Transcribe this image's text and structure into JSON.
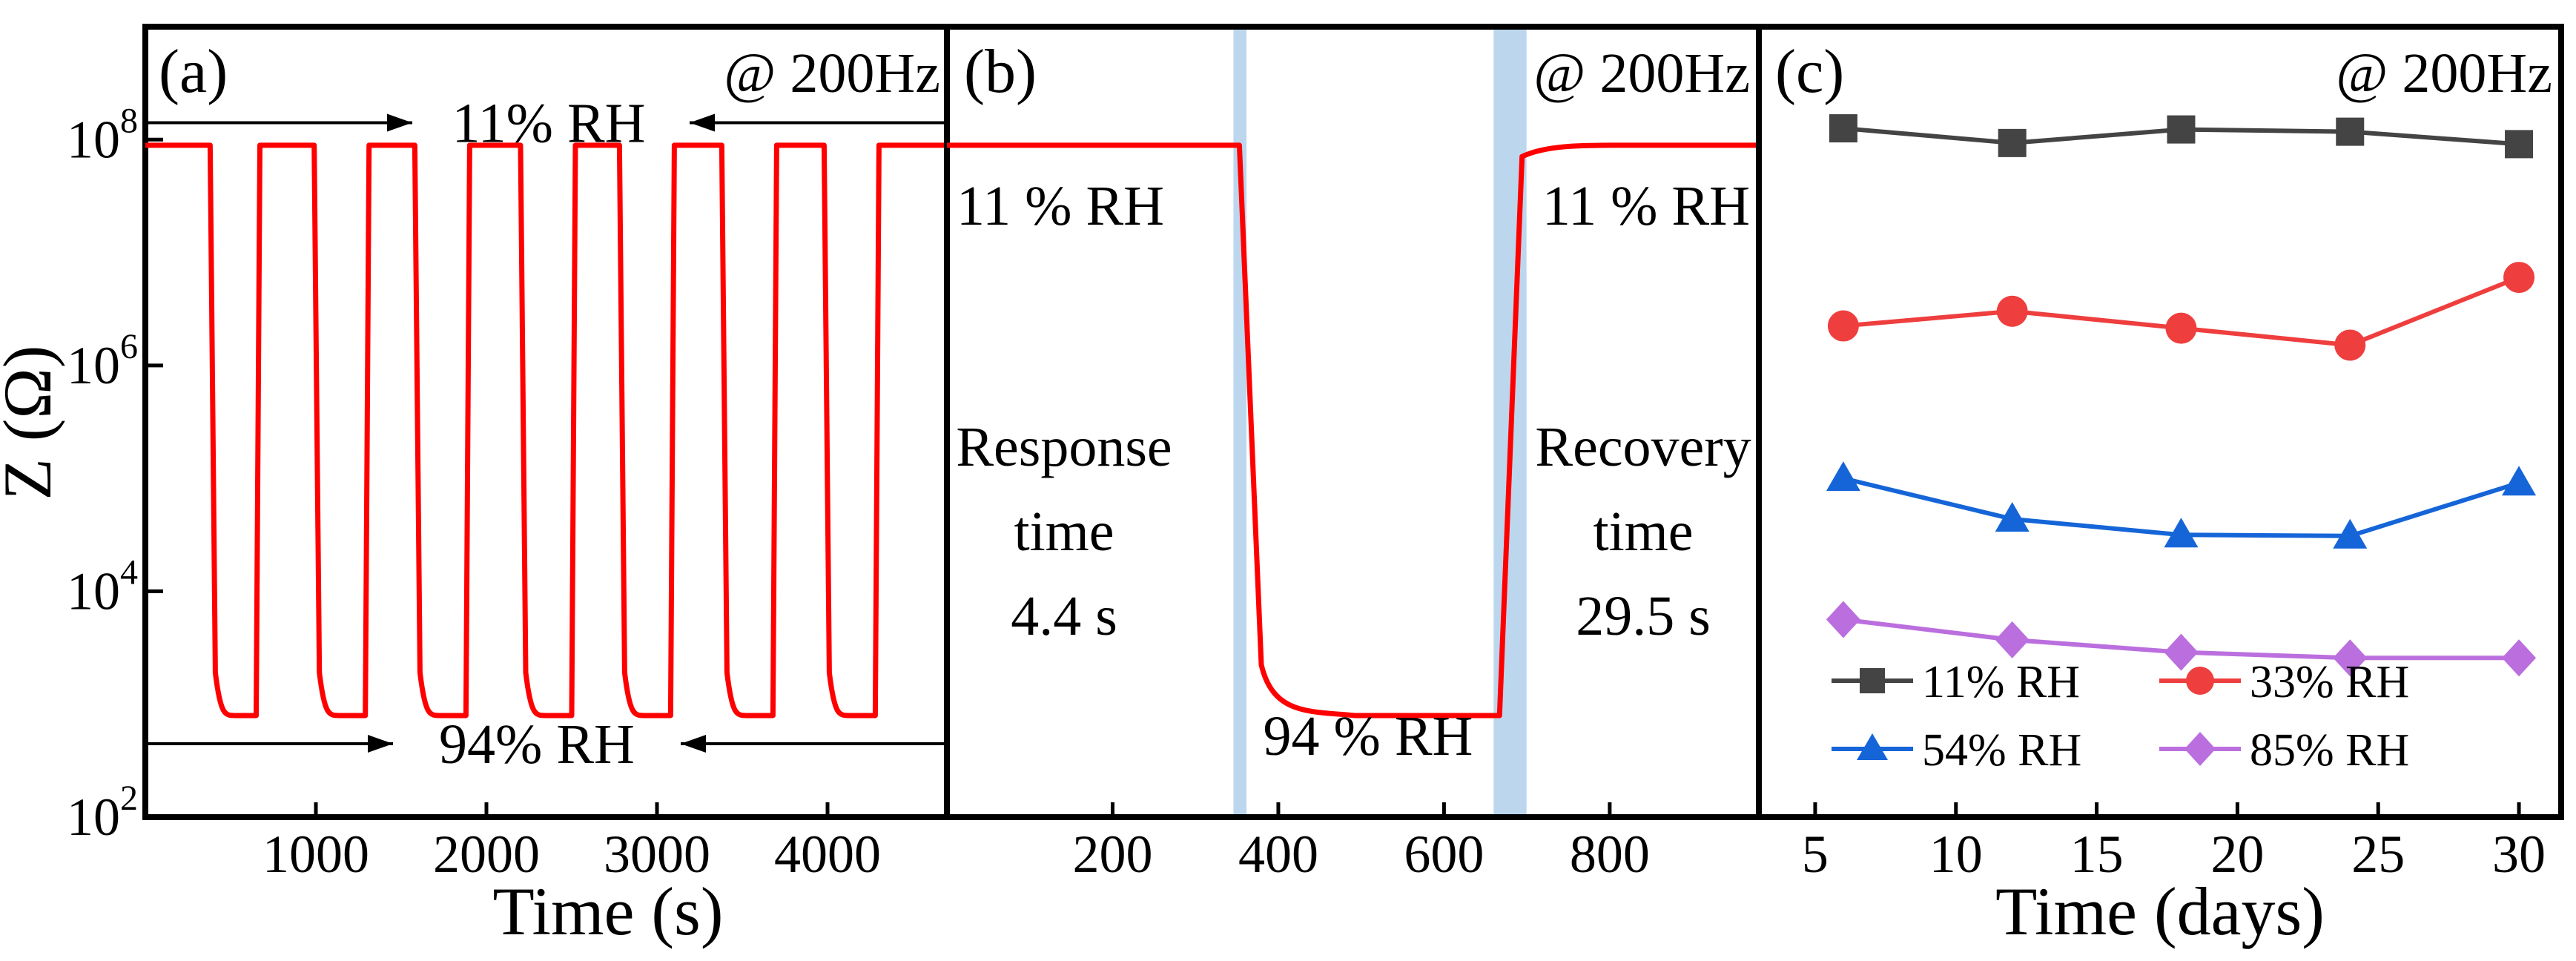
{
  "chart_data": [
    {
      "panel": "(a)",
      "type": "line",
      "annotation": "@ 200Hz",
      "xlabel": "Time (s)",
      "ylabel": "Z (Ω)",
      "xlim": [
        0,
        4700
      ],
      "xticks": [
        "1000",
        "2000",
        "3000",
        "4000"
      ],
      "xtick_values": [
        1000,
        2000,
        3000,
        4000
      ],
      "ylim_log10": [
        2,
        9
      ],
      "yticks": [
        {
          "base": "10",
          "exp": "2",
          "log": 2
        },
        {
          "base": "10",
          "exp": "4",
          "log": 4
        },
        {
          "base": "10",
          "exp": "6",
          "log": 6
        },
        {
          "base": "10",
          "exp": "8",
          "log": 8
        }
      ],
      "high_label": "11% RH",
      "low_label": "94% RH",
      "high_log": 7.95,
      "low_log": 2.9,
      "high_arrow_log": 8.15,
      "low_arrow_log": 2.65,
      "cycles_t": [
        [
          380,
          650
        ],
        [
          990,
          1290
        ],
        [
          1580,
          1880
        ],
        [
          2200,
          2500
        ],
        [
          2780,
          3080
        ],
        [
          3380,
          3680
        ],
        [
          3980,
          4280
        ]
      ],
      "series": [
        {
          "name": "Z",
          "color": "#ff0000",
          "t_end": 4700
        }
      ]
    },
    {
      "panel": "(b)",
      "type": "line",
      "annotation": "@ 200Hz",
      "xlabel": "",
      "xlim": [
        0,
        980
      ],
      "xticks": [
        "200",
        "400",
        "600",
        "800"
      ],
      "xtick_values": [
        200,
        400,
        600,
        800
      ],
      "ylim_log10": [
        2,
        9
      ],
      "high_log": 7.95,
      "low_log": 2.9,
      "response_window": [
        353,
        358
      ],
      "recovery_window": [
        667,
        696
      ],
      "labels": {
        "high_left": "11 % RH",
        "high_right": "11 % RH",
        "low": "94 % RH",
        "response_line1": "Response",
        "response_line2": "time",
        "response_value": "4.4 s",
        "recovery_line1": "Recovery",
        "recovery_line2": "time",
        "recovery_value": "29.5 s"
      },
      "highlight_color": "#bcd6ee",
      "series": [
        {
          "name": "Z",
          "color": "#ff0000"
        }
      ]
    },
    {
      "panel": "(c)",
      "type": "line",
      "annotation": "@ 200Hz",
      "xlabel": "Time (days)",
      "xlim": [
        3,
        31.5
      ],
      "xticks": [
        "5",
        "10",
        "15",
        "20",
        "25",
        "30"
      ],
      "xtick_values": [
        5,
        10,
        15,
        20,
        25,
        30
      ],
      "ylim_log10": [
        2,
        9
      ],
      "x": [
        6,
        12,
        18,
        24,
        30
      ],
      "series": [
        {
          "name": "11% RH",
          "color": "#444444",
          "marker": "square",
          "log_values": [
            8.1,
            7.97,
            8.09,
            8.07,
            7.96
          ]
        },
        {
          "name": "33% RH",
          "color": "#ef3e3e",
          "marker": "circle",
          "log_values": [
            6.35,
            6.48,
            6.33,
            6.18,
            6.78
          ]
        },
        {
          "name": "54% RH",
          "color": "#1565d8",
          "marker": "triangle",
          "log_values": [
            5.0,
            4.64,
            4.5,
            4.49,
            4.96
          ]
        },
        {
          "name": "85% RH",
          "color": "#bb6fde",
          "marker": "diamond",
          "log_values": [
            3.75,
            3.57,
            3.46,
            3.41,
            3.41
          ]
        }
      ]
    }
  ]
}
